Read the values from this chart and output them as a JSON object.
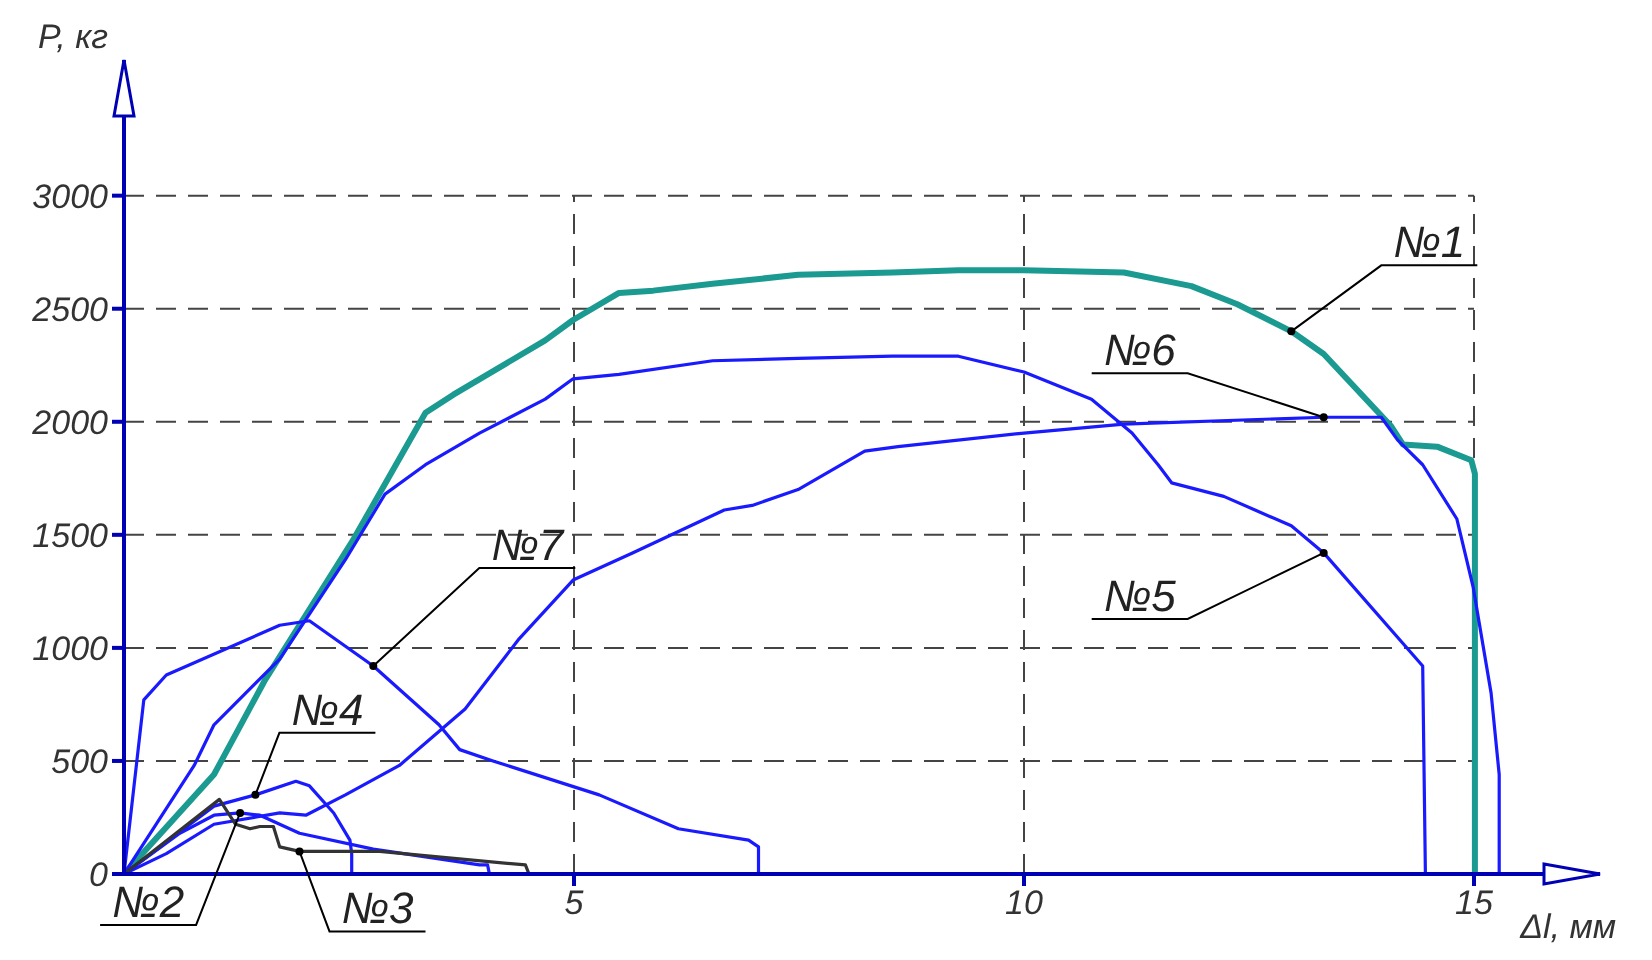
{
  "chart_data": {
    "type": "line",
    "xlabel": "Δl, мм",
    "ylabel": "P, кг",
    "xlim": [
      0,
      16.4
    ],
    "ylim": [
      0,
      3600
    ],
    "xticks": [
      5,
      10,
      15
    ],
    "yticks": [
      0,
      500,
      1000,
      1500,
      2000,
      2500,
      3000
    ],
    "grid": true,
    "marker": "none",
    "line_style": "solid",
    "series": [
      {
        "color": "#1a9a90",
        "x": [
          0,
          1.0,
          1.57,
          2.55,
          3.35,
          3.66,
          4.68,
          4.99,
          5.5,
          5.88,
          6.54,
          7.49,
          8.54,
          9.27,
          10,
          11.11,
          11.86,
          12.37,
          12.97,
          13.33,
          14.08,
          14.21,
          14.59,
          14.97,
          15.01,
          15.01
        ],
        "values": [
          0,
          440,
          860,
          1480,
          2040,
          2120,
          2360,
          2450,
          2570,
          2580,
          2610,
          2650,
          2660,
          2670,
          2670,
          2660,
          2600,
          2520,
          2400,
          2300,
          1980,
          1900,
          1890,
          1830,
          1770,
          0
        ]
      },
      {
        "color": "#1a1aff",
        "x": [
          0,
          0.78,
          1.0,
          1.73,
          2.46,
          2.9,
          3.35,
          3.95,
          4.68,
          4.99,
          5.5,
          6.54,
          7.49,
          8.54,
          9.27,
          10,
          10.75,
          11.2,
          11.49,
          11.64,
          12.22,
          12.97,
          13.33,
          14.43,
          14.46
        ],
        "values": [
          0,
          480,
          660,
          950,
          1390,
          1680,
          1810,
          1950,
          2100,
          2190,
          2210,
          2270,
          2280,
          2290,
          2290,
          2220,
          2100,
          1950,
          1810,
          1730,
          1670,
          1540,
          1420,
          920,
          0
        ]
      },
      {
        "color": "#1a1aff",
        "x": [
          0,
          0.47,
          1.0,
          1.73,
          2.02,
          2.46,
          3.06,
          3.79,
          4.39,
          4.99,
          5.65,
          6.67,
          6.98,
          7.49,
          8.23,
          8.6,
          10,
          11.11,
          13.33,
          13.97,
          14.15,
          14.43,
          14.81,
          14.99,
          15.19,
          15.28,
          15.28
        ],
        "values": [
          0,
          90,
          220,
          270,
          260,
          350,
          480,
          730,
          1040,
          1300,
          1420,
          1610,
          1630,
          1700,
          1870,
          1890,
          1950,
          1990,
          2020,
          2020,
          1920,
          1810,
          1570,
          1270,
          800,
          440,
          0
        ]
      },
      {
        "color": "#1a1aff",
        "x": [
          0,
          0.22,
          0.47,
          1.73,
          2.06,
          2.77,
          3.5,
          3.73,
          4.1,
          5.28,
          6.16,
          6.94,
          7.05,
          7.05
        ],
        "values": [
          0,
          770,
          880,
          1100,
          1120,
          920,
          660,
          550,
          500,
          350,
          200,
          150,
          120,
          0
        ]
      },
      {
        "color": "#1a1aff",
        "x": [
          0,
          1.0,
          1.46,
          1.91,
          2.06,
          2.33,
          2.51,
          2.53,
          2.53
        ],
        "values": [
          0,
          300,
          350,
          410,
          390,
          270,
          150,
          90,
          0
        ]
      },
      {
        "color": "#1a1aff",
        "x": [
          0,
          0.62,
          1.0,
          1.29,
          1.51,
          1.95,
          2.77,
          3.95,
          4.04,
          4.06
        ],
        "values": [
          0,
          180,
          260,
          270,
          260,
          180,
          110,
          40,
          40,
          0
        ]
      },
      {
        "color": "#333333",
        "x": [
          0,
          1.06,
          1.24,
          1.4,
          1.51,
          1.66,
          1.73,
          1.95,
          2.84,
          4.46,
          4.5
        ],
        "values": [
          0,
          330,
          220,
          200,
          210,
          210,
          120,
          100,
          100,
          40,
          0
        ]
      }
    ],
    "annotations": [
      {
        "text": "№1",
        "x": 12.97,
        "y": 2400
      },
      {
        "text": "№6",
        "x": 13.33,
        "y": 2020
      },
      {
        "text": "№5",
        "x": 13.33,
        "y": 1420
      },
      {
        "text": "№7",
        "x": 2.77,
        "y": 920
      },
      {
        "text": "№4",
        "x": 1.46,
        "y": 350
      },
      {
        "text": "№2",
        "x": 1.29,
        "y": 270
      },
      {
        "text": "№3",
        "x": 1.95,
        "y": 100
      }
    ]
  }
}
